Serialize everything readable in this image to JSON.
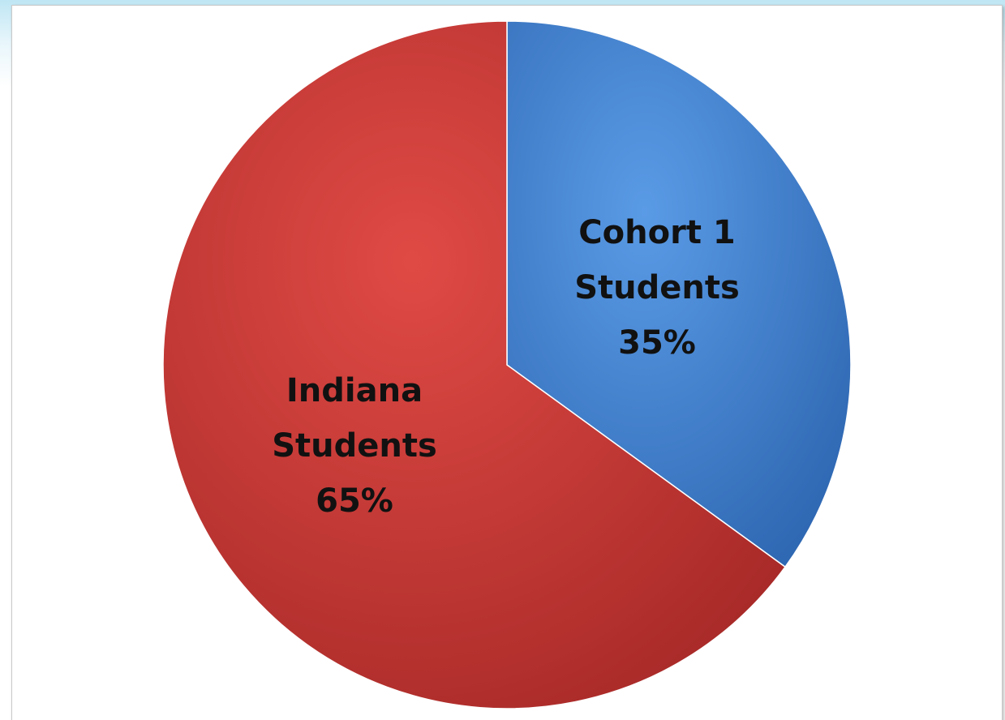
{
  "chart_data": {
    "type": "pie",
    "series": [
      {
        "values": [
          35,
          65
        ],
        "categories": [
          "Cohort 1 Students",
          "Indiana Students"
        ]
      }
    ],
    "slices": [
      {
        "name": "Cohort 1 Students",
        "label_lines": [
          "Cohort 1",
          "Students",
          "35%"
        ],
        "value": 35,
        "color": "#3f7fd0"
      },
      {
        "name": "Indiana Students",
        "label_lines": [
          "Indiana",
          "Students",
          "65%"
        ],
        "value": 65,
        "color": "#cf3b38"
      }
    ],
    "start_angle_deg": 0,
    "direction": "clockwise",
    "legend": "none",
    "title": ""
  }
}
